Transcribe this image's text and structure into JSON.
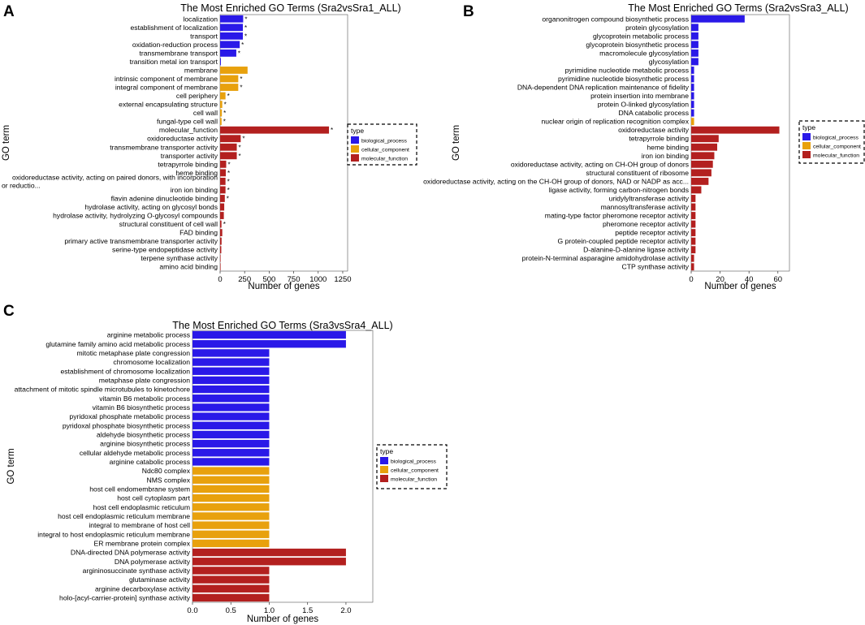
{
  "colors": {
    "biological_process": "#2a19e8",
    "cellular_component": "#e8a10d",
    "molecular_function": "#b3201f",
    "axis": "#000000"
  },
  "chart_data": [
    {
      "panel": "A",
      "type": "bar",
      "orientation": "horizontal",
      "title": "The Most Enriched GO Terms (Sra2vsSra1_ALL)",
      "xlabel": "Number of genes",
      "ylabel": "GO term",
      "xlim": [
        0,
        1300
      ],
      "xticks": [
        0,
        250,
        500,
        750,
        1000,
        1250
      ],
      "legend": {
        "title": "type",
        "position": "right",
        "entries": [
          "biological_process",
          "cellular_component",
          "molecular_function"
        ]
      },
      "bars": [
        {
          "label": "localization",
          "value": 235,
          "type": "biological_process",
          "star": true
        },
        {
          "label": "establishment of localization",
          "value": 232,
          "type": "biological_process",
          "star": true
        },
        {
          "label": "transport",
          "value": 232,
          "type": "biological_process",
          "star": true
        },
        {
          "label": "oxidation-reduction process",
          "value": 200,
          "type": "biological_process",
          "star": true
        },
        {
          "label": "transmembrane transport",
          "value": 165,
          "type": "biological_process",
          "star": true
        },
        {
          "label": "transition metal ion transport",
          "value": 8,
          "type": "biological_process",
          "star": false
        },
        {
          "label": "membrane",
          "value": 280,
          "type": "cellular_component",
          "star": false
        },
        {
          "label": "intrinsic component of membrane",
          "value": 185,
          "type": "cellular_component",
          "star": true
        },
        {
          "label": "integral component of membrane",
          "value": 185,
          "type": "cellular_component",
          "star": true
        },
        {
          "label": "cell periphery",
          "value": 55,
          "type": "cellular_component",
          "star": true
        },
        {
          "label": "external encapsulating structure",
          "value": 22,
          "type": "cellular_component",
          "star": true
        },
        {
          "label": "cell wall",
          "value": 18,
          "type": "cellular_component",
          "star": true
        },
        {
          "label": "fungal-type cell wall",
          "value": 15,
          "type": "cellular_component",
          "star": true
        },
        {
          "label": "molecular_function",
          "value": 1110,
          "type": "molecular_function",
          "star": true
        },
        {
          "label": "oxidoreductase activity",
          "value": 210,
          "type": "molecular_function",
          "star": true
        },
        {
          "label": "transmembrane transporter activity",
          "value": 170,
          "type": "molecular_function",
          "star": true
        },
        {
          "label": "transporter activity",
          "value": 170,
          "type": "molecular_function",
          "star": true
        },
        {
          "label": "tetrapyrrole binding",
          "value": 62,
          "type": "molecular_function",
          "star": true
        },
        {
          "label": "heme binding",
          "value": 58,
          "type": "molecular_function",
          "star": true
        },
        {
          "label": "oxidoreductase activity, acting on paired donors, with incorporation or reductio...",
          "value": 55,
          "type": "molecular_function",
          "star": true
        },
        {
          "label": "iron ion binding",
          "value": 55,
          "type": "molecular_function",
          "star": true
        },
        {
          "label": "flavin adenine dinucleotide binding",
          "value": 48,
          "type": "molecular_function",
          "star": true
        },
        {
          "label": "hydrolase activity, acting on glycosyl bonds",
          "value": 42,
          "type": "molecular_function",
          "star": false
        },
        {
          "label": "hydrolase activity, hydrolyzing O-glycosyl compounds",
          "value": 38,
          "type": "molecular_function",
          "star": false
        },
        {
          "label": "structural constituent of cell wall",
          "value": 14,
          "type": "molecular_function",
          "star": true
        },
        {
          "label": "FAD binding",
          "value": 22,
          "type": "molecular_function",
          "star": false
        },
        {
          "label": "primary active transmembrane transporter activity",
          "value": 15,
          "type": "molecular_function",
          "star": false
        },
        {
          "label": "serine-type endopeptidase activity",
          "value": 12,
          "type": "molecular_function",
          "star": false
        },
        {
          "label": "terpene synthase activity",
          "value": 4,
          "type": "molecular_function",
          "star": false
        },
        {
          "label": "amino acid binding",
          "value": 4,
          "type": "molecular_function",
          "star": false
        }
      ]
    },
    {
      "panel": "B",
      "type": "bar",
      "orientation": "horizontal",
      "title": "The Most Enriched GO Terms (Sra2vsSra3_ALL)",
      "xlabel": "Number of genes",
      "ylabel": "GO term",
      "xlim": [
        0,
        68
      ],
      "xticks": [
        0,
        20,
        40,
        60
      ],
      "legend": {
        "title": "type",
        "position": "right",
        "entries": [
          "biological_process",
          "cellular_component",
          "molecular_function"
        ]
      },
      "bars": [
        {
          "label": "organonitrogen compound biosynthetic process",
          "value": 37,
          "type": "biological_process",
          "star": false
        },
        {
          "label": "protein glycosylation",
          "value": 5,
          "type": "biological_process",
          "star": false
        },
        {
          "label": "glycoprotein metabolic process",
          "value": 5,
          "type": "biological_process",
          "star": false
        },
        {
          "label": "glycoprotein biosynthetic process",
          "value": 5,
          "type": "biological_process",
          "star": false
        },
        {
          "label": "macromolecule glycosylation",
          "value": 5,
          "type": "biological_process",
          "star": false
        },
        {
          "label": "glycosylation",
          "value": 5,
          "type": "biological_process",
          "star": false
        },
        {
          "label": "pyrimidine nucleotide metabolic process",
          "value": 2,
          "type": "biological_process",
          "star": false
        },
        {
          "label": "pyrimidine nucleotide biosynthetic process",
          "value": 2,
          "type": "biological_process",
          "star": false
        },
        {
          "label": "DNA-dependent DNA replication maintenance of fidelity",
          "value": 2,
          "type": "biological_process",
          "star": false
        },
        {
          "label": "protein insertion into membrane",
          "value": 2,
          "type": "biological_process",
          "star": false
        },
        {
          "label": "protein O-linked glycosylation",
          "value": 2,
          "type": "biological_process",
          "star": false
        },
        {
          "label": "DNA catabolic process",
          "value": 2,
          "type": "biological_process",
          "star": false
        },
        {
          "label": "nuclear origin of replication recognition complex",
          "value": 2,
          "type": "cellular_component",
          "star": false
        },
        {
          "label": "oxidoreductase activity",
          "value": 61,
          "type": "molecular_function",
          "star": false
        },
        {
          "label": "tetrapyrrole binding",
          "value": 19,
          "type": "molecular_function",
          "star": false
        },
        {
          "label": "heme binding",
          "value": 18,
          "type": "molecular_function",
          "star": false
        },
        {
          "label": "iron ion binding",
          "value": 16,
          "type": "molecular_function",
          "star": false
        },
        {
          "label": "oxidoreductase activity, acting on CH-OH group of donors",
          "value": 15,
          "type": "molecular_function",
          "star": false
        },
        {
          "label": "structural constituent of ribosome",
          "value": 14,
          "type": "molecular_function",
          "star": false
        },
        {
          "label": "oxidoreductase activity, acting on the CH-OH group of donors, NAD or NADP as acc...",
          "value": 12,
          "type": "molecular_function",
          "star": false
        },
        {
          "label": "ligase activity, forming carbon-nitrogen bonds",
          "value": 7,
          "type": "molecular_function",
          "star": false
        },
        {
          "label": "uridylyltransferase activity",
          "value": 3,
          "type": "molecular_function",
          "star": false
        },
        {
          "label": "mannosyltransferase activity",
          "value": 3,
          "type": "molecular_function",
          "star": false
        },
        {
          "label": "mating-type factor pheromone receptor activity",
          "value": 3,
          "type": "molecular_function",
          "star": false
        },
        {
          "label": "pheromone receptor activity",
          "value": 3,
          "type": "molecular_function",
          "star": false
        },
        {
          "label": "peptide receptor activity",
          "value": 3,
          "type": "molecular_function",
          "star": false
        },
        {
          "label": "G protein-coupled peptide receptor activity",
          "value": 3,
          "type": "molecular_function",
          "star": false
        },
        {
          "label": "D-alanine-D-alanine ligase activity",
          "value": 3,
          "type": "molecular_function",
          "star": false
        },
        {
          "label": "protein-N-terminal asparagine amidohydrolase activity",
          "value": 2,
          "type": "molecular_function",
          "star": false
        },
        {
          "label": "CTP synthase activity",
          "value": 2,
          "type": "molecular_function",
          "star": false
        }
      ]
    },
    {
      "panel": "C",
      "type": "bar",
      "orientation": "horizontal",
      "title": "The Most Enriched GO Terms (Sra3vsSra4_ALL)",
      "xlabel": "Number of genes",
      "ylabel": "GO term",
      "xlim": [
        0,
        2.35
      ],
      "xticks": [
        0.0,
        0.5,
        1.0,
        1.5,
        2.0
      ],
      "legend": {
        "title": "type",
        "position": "right",
        "entries": [
          "biological_process",
          "cellular_component",
          "molecular_function"
        ]
      },
      "bars": [
        {
          "label": "arginine metabolic process",
          "value": 2,
          "type": "biological_process",
          "star": false
        },
        {
          "label": "glutamine family amino acid metabolic process",
          "value": 2,
          "type": "biological_process",
          "star": false
        },
        {
          "label": "mitotic metaphase plate congression",
          "value": 1,
          "type": "biological_process",
          "star": false
        },
        {
          "label": "chromosome localization",
          "value": 1,
          "type": "biological_process",
          "star": false
        },
        {
          "label": "establishment of chromosome localization",
          "value": 1,
          "type": "biological_process",
          "star": false
        },
        {
          "label": "metaphase plate congression",
          "value": 1,
          "type": "biological_process",
          "star": false
        },
        {
          "label": "attachment of mitotic spindle microtubules to kinetochore",
          "value": 1,
          "type": "biological_process",
          "star": false
        },
        {
          "label": "vitamin B6 metabolic process",
          "value": 1,
          "type": "biological_process",
          "star": false
        },
        {
          "label": "vitamin B6 biosynthetic process",
          "value": 1,
          "type": "biological_process",
          "star": false
        },
        {
          "label": "pyridoxal phosphate metabolic process",
          "value": 1,
          "type": "biological_process",
          "star": false
        },
        {
          "label": "pyridoxal phosphate biosynthetic process",
          "value": 1,
          "type": "biological_process",
          "star": false
        },
        {
          "label": "aldehyde biosynthetic process",
          "value": 1,
          "type": "biological_process",
          "star": false
        },
        {
          "label": "arginine biosynthetic process",
          "value": 1,
          "type": "biological_process",
          "star": false
        },
        {
          "label": "cellular aldehyde metabolic process",
          "value": 1,
          "type": "biological_process",
          "star": false
        },
        {
          "label": "arginine catabolic process",
          "value": 1,
          "type": "biological_process",
          "star": false
        },
        {
          "label": "Ndc80 complex",
          "value": 1,
          "type": "cellular_component",
          "star": false
        },
        {
          "label": "NMS complex",
          "value": 1,
          "type": "cellular_component",
          "star": false
        },
        {
          "label": "host cell endomembrane system",
          "value": 1,
          "type": "cellular_component",
          "star": false
        },
        {
          "label": "host cell cytoplasm part",
          "value": 1,
          "type": "cellular_component",
          "star": false
        },
        {
          "label": "host cell endoplasmic reticulum",
          "value": 1,
          "type": "cellular_component",
          "star": false
        },
        {
          "label": "host cell endoplasmic reticulum membrane",
          "value": 1,
          "type": "cellular_component",
          "star": false
        },
        {
          "label": "integral to membrane of host cell",
          "value": 1,
          "type": "cellular_component",
          "star": false
        },
        {
          "label": "integral to host endoplasmic reticulum membrane",
          "value": 1,
          "type": "cellular_component",
          "star": false
        },
        {
          "label": "ER membrane protein complex",
          "value": 1,
          "type": "cellular_component",
          "star": false
        },
        {
          "label": "DNA-directed DNA polymerase activity",
          "value": 2,
          "type": "molecular_function",
          "star": false
        },
        {
          "label": "DNA polymerase activity",
          "value": 2,
          "type": "molecular_function",
          "star": false
        },
        {
          "label": "argininosuccinate synthase activity",
          "value": 1,
          "type": "molecular_function",
          "star": false
        },
        {
          "label": "glutaminase activity",
          "value": 1,
          "type": "molecular_function",
          "star": false
        },
        {
          "label": "arginine decarboxylase activity",
          "value": 1,
          "type": "molecular_function",
          "star": false
        },
        {
          "label": "holo-[acyl-carrier-protein] synthase activity",
          "value": 1,
          "type": "molecular_function",
          "star": false
        }
      ]
    }
  ]
}
